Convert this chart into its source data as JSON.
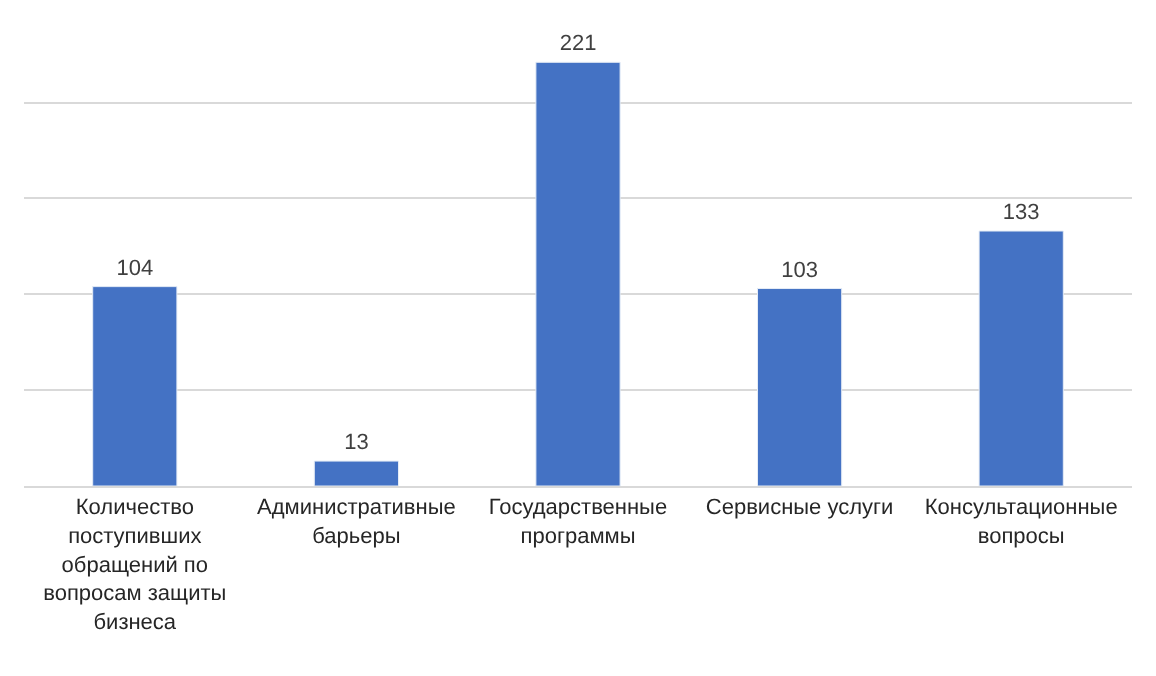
{
  "chart_data": {
    "type": "bar",
    "categories": [
      "Количество поступивших обращений по вопросам защиты бизнеса",
      "Административные барьеры",
      "Государственные программы",
      "Сервисные услуги",
      "Консультационные вопросы"
    ],
    "values": [
      104,
      13,
      221,
      103,
      133
    ],
    "color": "#4472c4",
    "tick_labels": "x",
    "grid": "y",
    "data_labels": true
  }
}
